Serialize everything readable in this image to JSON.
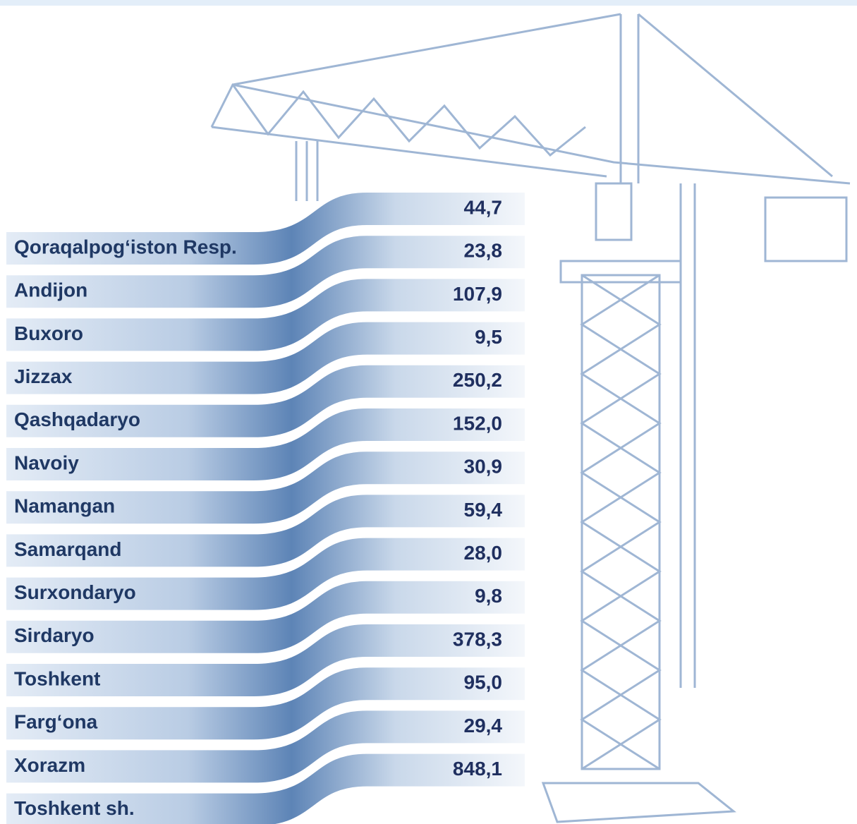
{
  "rows": [
    {
      "region": "Qoraqalpog‘iston Resp.",
      "value": "44,7"
    },
    {
      "region": "Andijon",
      "value": "23,8"
    },
    {
      "region": "Buxoro",
      "value": "107,9"
    },
    {
      "region": "Jizzax",
      "value": "9,5"
    },
    {
      "region": "Qashqadaryo",
      "value": "250,2"
    },
    {
      "region": "Navoiy",
      "value": "152,0"
    },
    {
      "region": "Namangan",
      "value": "30,9"
    },
    {
      "region": "Samarqand",
      "value": "59,4"
    },
    {
      "region": "Surxondaryo",
      "value": "28,0"
    },
    {
      "region": "Sirdaryo",
      "value": "9,8"
    },
    {
      "region": "Toshkent",
      "value": "378,3"
    },
    {
      "region": "Farg‘ona",
      "value": "95,0"
    },
    {
      "region": "Xorazm",
      "value": "29,4"
    },
    {
      "region": "Toshkent sh.",
      "value": "848,1"
    }
  ]
}
